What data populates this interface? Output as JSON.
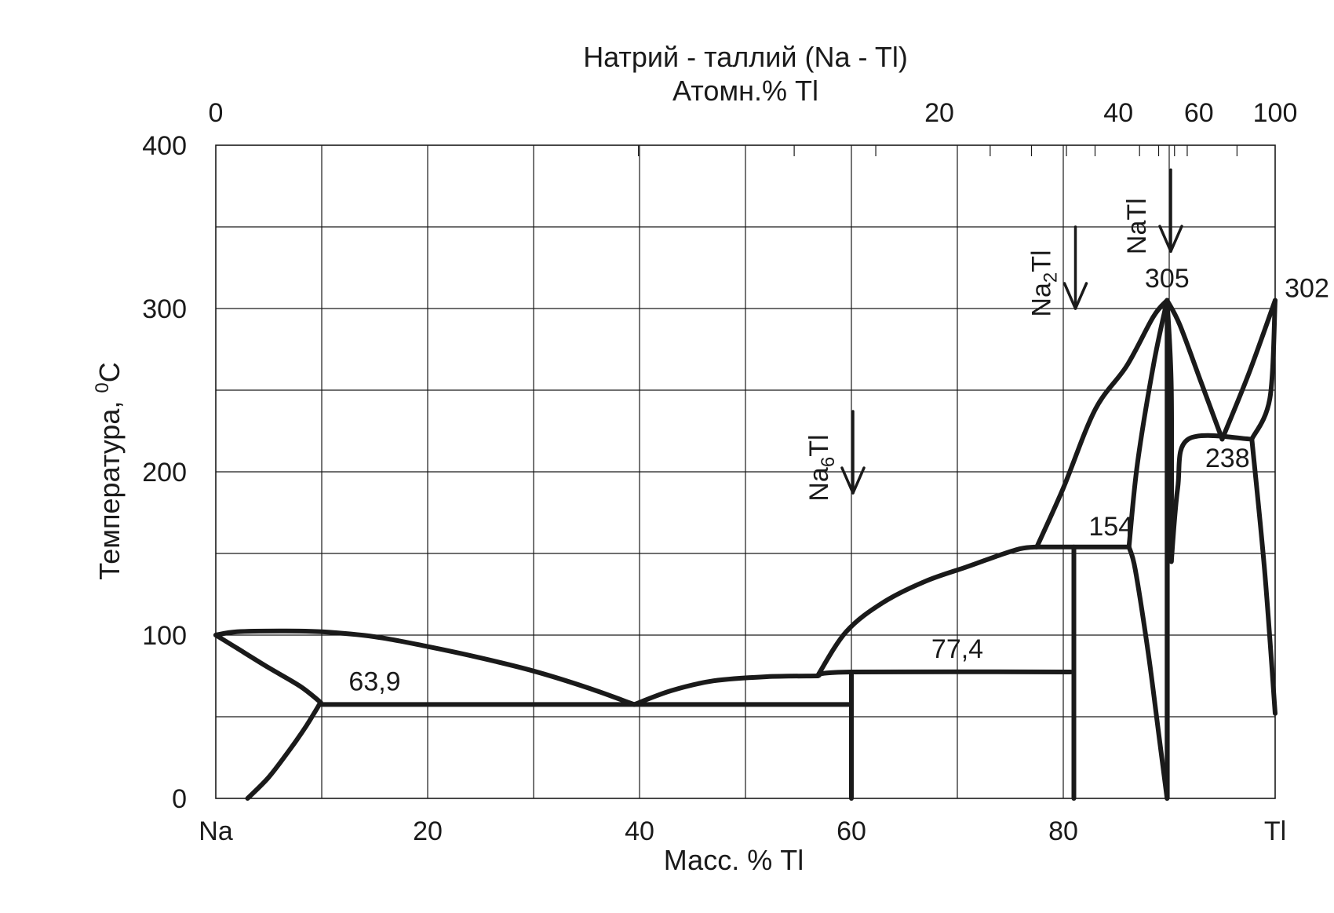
{
  "chart_data": {
    "type": "line",
    "title": "Натрий - таллий (Na - Tl)",
    "subtitle": "Атомн.% Tl",
    "xlabel": "Масс. % Tl",
    "ylabel": "Температура, °C",
    "xlim": [
      0,
      100
    ],
    "ylim": [
      0,
      400
    ],
    "grid": true,
    "x_ticks": [
      {
        "value": 0,
        "label": "Na"
      },
      {
        "value": 20,
        "label": "20"
      },
      {
        "value": 40,
        "label": "40"
      },
      {
        "value": 60,
        "label": "60"
      },
      {
        "value": 80,
        "label": "80"
      },
      {
        "value": 100,
        "label": "Tl"
      }
    ],
    "y_ticks": [
      {
        "value": 0,
        "label": "0"
      },
      {
        "value": 100,
        "label": "100"
      },
      {
        "value": 200,
        "label": "200"
      },
      {
        "value": 300,
        "label": "300"
      },
      {
        "value": 400,
        "label": "400"
      }
    ],
    "top_ticks": [
      {
        "value": 0,
        "label": "0"
      },
      {
        "value": 68.3,
        "label": "20"
      },
      {
        "value": 85.2,
        "label": "40"
      },
      {
        "value": 92.8,
        "label": "60"
      },
      {
        "value": 100,
        "label": "100"
      }
    ],
    "top_minor_ticks": [
      39.9,
      54.6,
      62.3,
      73.1,
      77.0,
      80.3,
      83.0,
      87.2,
      89.0,
      90.5,
      91.7,
      96.4
    ],
    "series": [
      {
        "points": [
          [
            0,
            100
          ],
          [
            2,
            102
          ],
          [
            6,
            102.5
          ],
          [
            10,
            102
          ],
          [
            15,
            99
          ],
          [
            20,
            93
          ],
          [
            25,
            86
          ],
          [
            30,
            78
          ],
          [
            35,
            68
          ],
          [
            39.5,
            57.5
          ]
        ]
      },
      {
        "points": [
          [
            0,
            100
          ],
          [
            2,
            92
          ],
          [
            5,
            80
          ],
          [
            8,
            68.5
          ],
          [
            9.9,
            58.8
          ]
        ]
      },
      {
        "points": [
          [
            3,
            0
          ],
          [
            5,
            13
          ],
          [
            7,
            30
          ],
          [
            8.5,
            44
          ],
          [
            9.9,
            58.8
          ]
        ]
      },
      {
        "points": [
          [
            9.9,
            57.5
          ],
          [
            40,
            57.5
          ],
          [
            60,
            57.5
          ]
        ]
      },
      {
        "points": [
          [
            39.5,
            57.5
          ],
          [
            43,
            66
          ],
          [
            47,
            72
          ],
          [
            52,
            74.5
          ],
          [
            56.8,
            75
          ]
        ]
      },
      {
        "points": [
          [
            56.8,
            75
          ],
          [
            60,
            77.4
          ],
          [
            80.7,
            77.4
          ]
        ]
      },
      {
        "points": [
          [
            56.8,
            75
          ],
          [
            59.5,
            102
          ],
          [
            63,
            120
          ],
          [
            67,
            133
          ],
          [
            71,
            142
          ],
          [
            74,
            149
          ],
          [
            76,
            153
          ],
          [
            77.5,
            154
          ]
        ]
      },
      {
        "points": [
          [
            77.5,
            154
          ],
          [
            80,
            190
          ],
          [
            83,
            238
          ],
          [
            86,
            265
          ],
          [
            88.5,
            295
          ],
          [
            89.8,
            305
          ]
        ]
      },
      {
        "points": [
          [
            77.5,
            154
          ],
          [
            86.2,
            154
          ]
        ]
      },
      {
        "points": [
          [
            60,
            77.4
          ],
          [
            60,
            0
          ]
        ]
      },
      {
        "points": [
          [
            81,
            154
          ],
          [
            81,
            0
          ]
        ]
      },
      {
        "points": [
          [
            86.2,
            154
          ],
          [
            86.8,
            140
          ],
          [
            88,
            90
          ],
          [
            89,
            40
          ],
          [
            89.8,
            0
          ]
        ]
      },
      {
        "points": [
          [
            86.2,
            154
          ],
          [
            87,
            205
          ],
          [
            88.5,
            265
          ],
          [
            89.8,
            305
          ]
        ]
      },
      {
        "points": [
          [
            89.8,
            305
          ],
          [
            89.8,
            0
          ]
        ]
      },
      {
        "points": [
          [
            89.8,
            305
          ],
          [
            90.2,
            250
          ],
          [
            90.2,
            145
          ]
        ]
      },
      {
        "points": [
          [
            89.8,
            305
          ],
          [
            91,
            290
          ],
          [
            93,
            255
          ],
          [
            95,
            220
          ]
        ]
      },
      {
        "points": [
          [
            90.2,
            145
          ],
          [
            90.8,
            190
          ],
          [
            91.8,
            220
          ],
          [
            97.8,
            220
          ]
        ]
      },
      {
        "points": [
          [
            95,
            220
          ],
          [
            97.5,
            260
          ],
          [
            100,
            305
          ]
        ]
      },
      {
        "points": [
          [
            97.8,
            220
          ],
          [
            99.5,
            245
          ],
          [
            100,
            305
          ]
        ]
      },
      {
        "points": [
          [
            97.8,
            220
          ],
          [
            99,
            140
          ],
          [
            100,
            52
          ]
        ]
      }
    ],
    "annotations": [
      {
        "text": "63,9",
        "x": 15,
        "y": 66
      },
      {
        "text": "77,4",
        "x": 70,
        "y": 86
      },
      {
        "text": "154",
        "x": 84.5,
        "y": 161
      },
      {
        "text": "305",
        "x": 89.8,
        "y": 313
      },
      {
        "text": "302",
        "x": 103,
        "y": 307
      },
      {
        "text": "238",
        "x": 95.5,
        "y": 203
      }
    ],
    "compound_markers": [
      {
        "formula": "Na",
        "subscript": "6",
        "suffix": "Tl",
        "x": 60,
        "y_top": 237,
        "y_bottom": 187
      },
      {
        "formula": "Na",
        "subscript": "2",
        "suffix": "Tl",
        "x": 81,
        "y_top": 350,
        "y_bottom": 300
      },
      {
        "formula": "Na",
        "subscript": "",
        "suffix": "Tl",
        "x": 90,
        "y_top": 385,
        "y_bottom": 335
      }
    ]
  }
}
